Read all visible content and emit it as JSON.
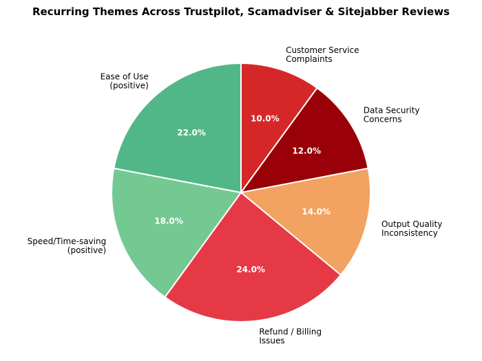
{
  "chart_data": {
    "type": "pie",
    "title": "Recurring Themes Across Trustpilot, Scamadviser & Sitejabber Reviews",
    "start_angle_deg": 90,
    "direction": "clockwise",
    "slices": [
      {
        "label": "Customer Service\nComplaints",
        "value": 10.0,
        "pct_text": "10.0%",
        "color": "#d62728"
      },
      {
        "label": "Data Security\nConcerns",
        "value": 12.0,
        "pct_text": "12.0%",
        "color": "#990008"
      },
      {
        "label": "Output Quality\nInconsistency",
        "value": 14.0,
        "pct_text": "14.0%",
        "color": "#f2a261"
      },
      {
        "label": "Refund / Billing\nIssues",
        "value": 24.0,
        "pct_text": "24.0%",
        "color": "#e63946"
      },
      {
        "label": "Speed/Time-saving\n(positive)",
        "value": 18.0,
        "pct_text": "18.0%",
        "color": "#74c993"
      },
      {
        "label": "Ease of Use\n(positive)",
        "value": 22.0,
        "pct_text": "22.0%",
        "color": "#52b788"
      }
    ]
  }
}
